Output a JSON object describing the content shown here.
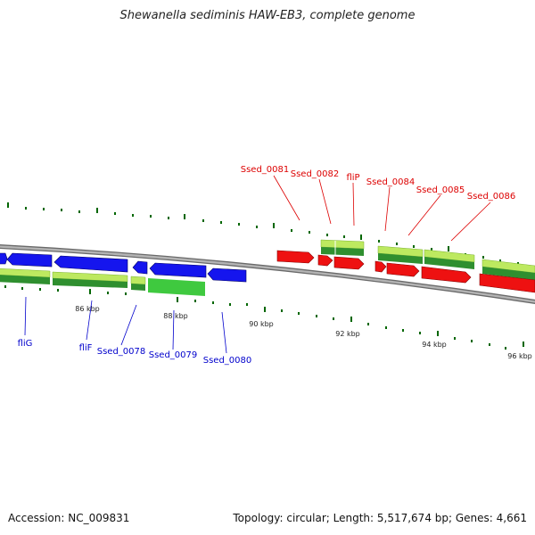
{
  "title": "Shewanella sediminis HAW-EB3, complete genome",
  "footer": {
    "accession": "Accession: NC_009831",
    "stats": "Topology: circular; Length: 5,517,674 bp; Genes: 4,661"
  },
  "colors": {
    "forward_gene": "#ff0000",
    "reverse_gene": "#0000ff",
    "cds_bar": "#33cc33",
    "backbone": "#999999",
    "tick": "#006600"
  },
  "ticks": [
    {
      "label": "86 kbp"
    },
    {
      "label": "88 kbp"
    },
    {
      "label": "90 kbp"
    },
    {
      "label": "92 kbp"
    },
    {
      "label": "94 kbp"
    },
    {
      "label": "96 kbp"
    }
  ],
  "genes_top": [
    {
      "label": "Ssed_0081"
    },
    {
      "label": "Ssed_0082"
    },
    {
      "label": "fliP"
    },
    {
      "label": "Ssed_0084"
    },
    {
      "label": "Ssed_0085"
    },
    {
      "label": "Ssed_0086"
    }
  ],
  "genes_bottom": [
    {
      "label": "fliG"
    },
    {
      "label": "fliF"
    },
    {
      "label": "Ssed_0078"
    },
    {
      "label": "Ssed_0079"
    },
    {
      "label": "Ssed_0080"
    }
  ]
}
